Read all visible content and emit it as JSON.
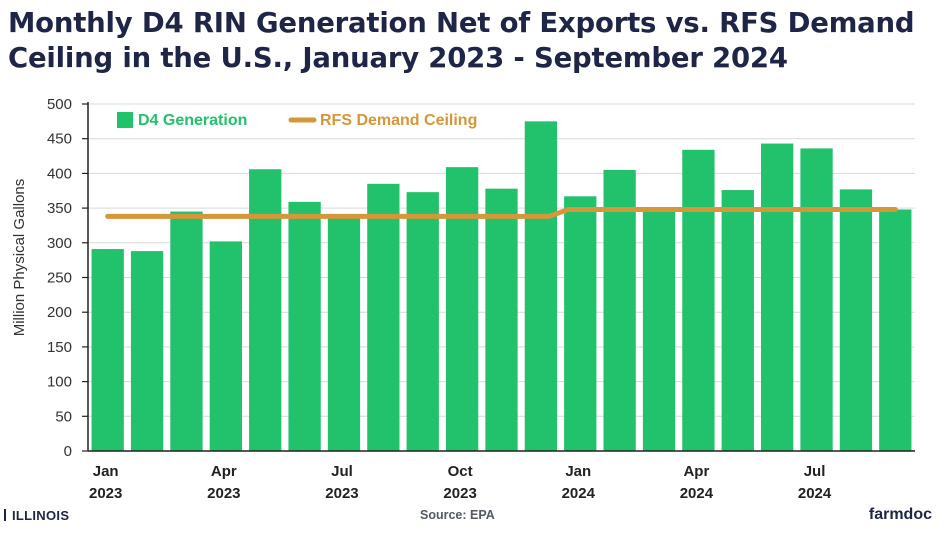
{
  "chart_data": {
    "type": "bar",
    "title": "Monthly D4 RIN Generation Net of Exports vs. RFS Demand Ceiling in the U.S., January 2023 - September 2024",
    "ylabel": "Million Physical Gallons",
    "xlabel": "",
    "ylim": [
      0,
      500
    ],
    "yticks": [
      0,
      50,
      100,
      150,
      200,
      250,
      300,
      350,
      400,
      450,
      500
    ],
    "grid": true,
    "legend_position": "top-left",
    "categories": [
      "Jan 2023",
      "Feb 2023",
      "Mar 2023",
      "Apr 2023",
      "May 2023",
      "Jun 2023",
      "Jul 2023",
      "Aug 2023",
      "Sep 2023",
      "Oct 2023",
      "Nov 2023",
      "Dec 2023",
      "Jan 2024",
      "Feb 2024",
      "Mar 2024",
      "Apr 2024",
      "May 2024",
      "Jun 2024",
      "Jul 2024",
      "Aug 2024",
      "Sep 2024"
    ],
    "x_tick_labels": [
      {
        "index": 0,
        "month": "Jan",
        "year": "2023"
      },
      {
        "index": 3,
        "month": "Apr",
        "year": "2023"
      },
      {
        "index": 6,
        "month": "Jul",
        "year": "2023"
      },
      {
        "index": 9,
        "month": "Oct",
        "year": "2023"
      },
      {
        "index": 12,
        "month": "Jan",
        "year": "2024"
      },
      {
        "index": 15,
        "month": "Apr",
        "year": "2024"
      },
      {
        "index": 18,
        "month": "Jul",
        "year": "2024"
      }
    ],
    "series": [
      {
        "name": "D4 Generation",
        "type": "bar",
        "color": "#22c16b",
        "values": [
          291,
          288,
          345,
          302,
          406,
          359,
          336,
          385,
          373,
          409,
          378,
          475,
          367,
          405,
          348,
          434,
          376,
          443,
          436,
          377,
          348
        ]
      },
      {
        "name": "RFS Demand Ceiling",
        "type": "line",
        "color": "#d4973a",
        "values": [
          338,
          338,
          338,
          338,
          338,
          338,
          338,
          338,
          338,
          338,
          338,
          338,
          348,
          348,
          348,
          348,
          348,
          348,
          348,
          348,
          348
        ]
      }
    ]
  },
  "footer": {
    "left_logo": "ILLINOIS",
    "source": "Source: EPA",
    "right_logo": "farmdoc"
  }
}
